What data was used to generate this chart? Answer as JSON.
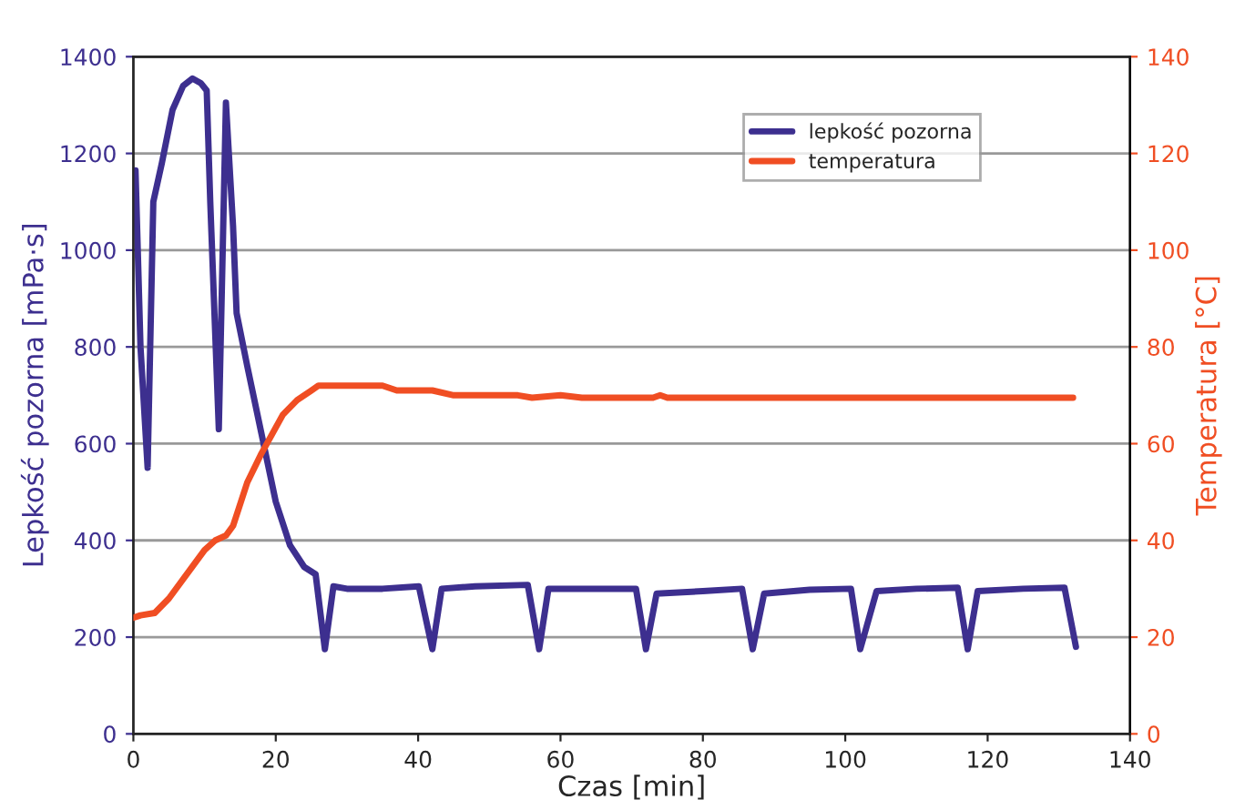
{
  "chart_data": {
    "type": "line",
    "xlabel": "Czas [min]",
    "ylabel": "Lepkość pozorna [mPa·s]",
    "y2label": "Temperatura [°C]",
    "xlim": [
      0,
      140
    ],
    "xticks": [
      0,
      20,
      40,
      60,
      80,
      100,
      120,
      140
    ],
    "ylim": [
      0,
      1400
    ],
    "yticks": [
      0,
      200,
      400,
      600,
      800,
      1000,
      1200,
      1400
    ],
    "y2lim": [
      0,
      140
    ],
    "y2ticks": [
      0,
      20,
      40,
      60,
      80,
      100,
      120,
      140
    ],
    "grid": "y",
    "legend": "top right",
    "marker": "none",
    "line_style": "solid",
    "series": [
      {
        "name": "lepkość pozorna",
        "color": "#3d2f8f",
        "x": [
          0.3,
          1.0,
          2.0,
          2.8,
          4.0,
          5.5,
          7.0,
          8.3,
          9.5,
          10.3,
          10.8,
          12.0,
          13.0,
          14.0,
          14.5,
          16.0,
          18.0,
          20.0,
          22.0,
          24.0,
          25.6,
          26.9,
          28.1,
          30.0,
          35.0,
          40.1,
          42.0,
          43.3,
          48.0,
          55.4,
          57.0,
          58.3,
          65.0,
          70.6,
          72.0,
          73.5,
          80.0,
          85.5,
          87.0,
          88.6,
          95.0,
          100.8,
          102.1,
          104.4,
          110.0,
          115.8,
          117.2,
          118.6,
          125.0,
          130.8,
          132.4
        ],
        "values": [
          1165,
          800,
          550,
          1100,
          1180,
          1290,
          1340,
          1355,
          1345,
          1330,
          1100,
          630,
          1305,
          1050,
          870,
          760,
          620,
          480,
          390,
          345,
          330,
          175,
          305,
          300,
          300,
          305,
          175,
          300,
          305,
          308,
          175,
          300,
          300,
          300,
          175,
          290,
          295,
          300,
          175,
          290,
          298,
          300,
          175,
          295,
          300,
          302,
          175,
          295,
          300,
          302,
          180
        ]
      },
      {
        "name": "temperatura",
        "color": "#f04e23",
        "axis": "y2",
        "x": [
          0,
          1,
          3,
          5,
          8,
          10,
          11.5,
          13,
          14,
          16,
          18,
          19.5,
          21,
          23,
          25,
          26,
          30,
          35,
          37,
          42,
          45,
          54,
          56,
          60,
          63,
          73,
          74,
          75,
          132
        ],
        "values": [
          24,
          24.5,
          25,
          28,
          34,
          38,
          40,
          41,
          43,
          52,
          58,
          62,
          66,
          69,
          71,
          72,
          72,
          72,
          71,
          71,
          70,
          70,
          69.5,
          70,
          69.5,
          69.5,
          70,
          69.5,
          69.5
        ]
      }
    ]
  }
}
